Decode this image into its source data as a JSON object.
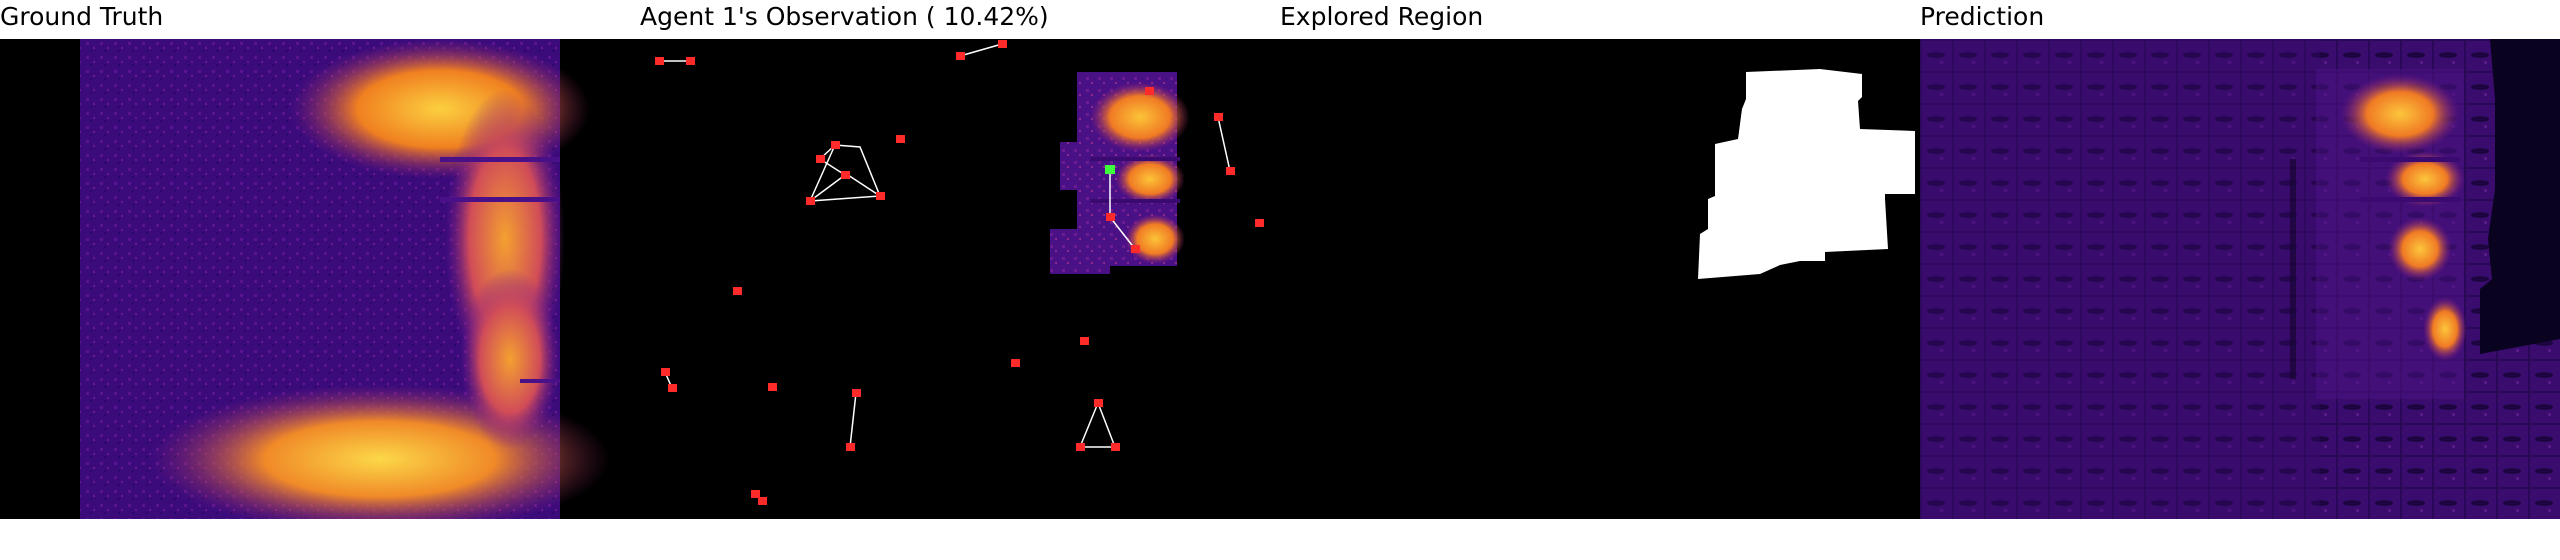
{
  "panels": [
    {
      "title": "Ground Truth"
    },
    {
      "title": "Agent 1's Observation ( 10.42%)"
    },
    {
      "title": "Explored Region"
    },
    {
      "title": "Prediction"
    }
  ],
  "colors": {
    "background": "#000000",
    "field_base": "#3a0a78",
    "field_mid": "#7a1c8c",
    "hot": "#f07a20",
    "hotter": "#fcbd2c",
    "agent_marker": "#ff2a2a",
    "active_agent_marker": "#3cff3c",
    "explored": "#ffffff"
  },
  "observation_coverage_percent": 10.42
}
